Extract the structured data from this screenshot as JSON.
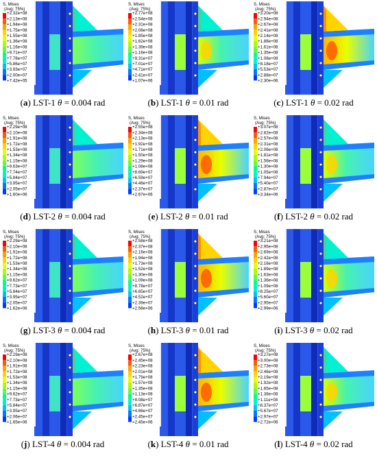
{
  "legend_title_1": "S, Mises",
  "legend_title_2": "(Avg: 75%)",
  "panels": [
    {
      "letter": "a",
      "specimen": "LST-1",
      "theta_symbol": "θ",
      "value": "= 0.004 rad",
      "legend": [
        "+2.32e+08",
        "+2.13e+08",
        "+1.94e+08",
        "+1.75e+08",
        "+1.55e+08",
        "+1.36e+08",
        "+1.16e+08",
        "+9.71e+07",
        "+7.78e+07",
        "+5.86e+07",
        "+3.93e+07",
        "+2.00e+07",
        "+7.42e+05"
      ]
    },
    {
      "letter": "b",
      "specimen": "LST-1",
      "theta_symbol": "θ",
      "value": "= 0.01 rad",
      "legend": [
        "+2.77e+08",
        "+2.54e+08",
        "+2.31e+08",
        "+2.08e+08",
        "+1.85e+08",
        "+1.62e+08",
        "+1.39e+08",
        "+1.16e+08",
        "+9.31e+07",
        "+7.01e+07",
        "+4.71e+07",
        "+2.41e+07",
        "+1.07e+06"
      ]
    },
    {
      "letter": "c",
      "specimen": "LST-1",
      "theta_symbol": "θ",
      "value": "= 0.02 rad",
      "legend": [
        "+3.20e+08",
        "+2.94e+08",
        "+2.67e+08",
        "+2.41e+08",
        "+2.14e+08",
        "+1.88e+08",
        "+1.61e+08",
        "+1.35e+08",
        "+1.08e+08",
        "+8.18e+07",
        "+5.53e+07",
        "+2.88e+07",
        "+2.30e+06"
      ]
    },
    {
      "letter": "d",
      "specimen": "LST-2",
      "theta_symbol": "θ",
      "value": "= 0.004 rad",
      "legend": [
        "+2.29e+08",
        "+2.10e+08",
        "+1.91e+08",
        "+1.72e+08",
        "+1.53e+08",
        "+1.34e+08",
        "+1.15e+08",
        "+9.63e+07",
        "+7.74e+07",
        "+5.84e+07",
        "+3.95e+07",
        "+2.05e+07",
        "+1.60e+06"
      ]
    },
    {
      "letter": "e",
      "specimen": "LST-2",
      "theta_symbol": "θ",
      "value": "= 0.01 rad",
      "legend": [
        "+2.55e+08",
        "+2.34e+08",
        "+2.13e+08",
        "+1.92e+08",
        "+1.71e+08",
        "+1.50e+08",
        "+1.29e+08",
        "+1.08e+08",
        "+8.69e+07",
        "+6.59e+07",
        "+4.48e+07",
        "+2.37e+07",
        "+2.67e+06"
      ]
    },
    {
      "letter": "f",
      "specimen": "LST-2",
      "theta_symbol": "θ",
      "value": "= 0.02 rad",
      "legend": [
        "+3.07e+08",
        "+2.82e+08",
        "+2.57e+08",
        "+2.31e+08",
        "+2.06e+08",
        "+1.81e+08",
        "+1.56e+08",
        "+1.30e+08",
        "+1.05e+08",
        "+7.94e+07",
        "+5.40e+07",
        "+2.87e+07",
        "+3.34e+06"
      ]
    },
    {
      "letter": "g",
      "specimen": "LST-3",
      "theta_symbol": "θ",
      "value": "= 0.004 rad",
      "legend": [
        "+2.29e+08",
        "+2.10e+08",
        "+1.91e+08",
        "+1.72e+08",
        "+1.53e+08",
        "+1.34e+08",
        "+1.15e+08",
        "+9.62e+07",
        "+7.73e+07",
        "+5.84e+07",
        "+3.95e+07",
        "+2.05e+07",
        "+1.62e+06"
      ]
    },
    {
      "letter": "h",
      "specimen": "LST-3",
      "theta_symbol": "θ",
      "value": "= 0.01 rad",
      "legend": [
        "+2.58e+08",
        "+2.37e+08",
        "+2.16e+08",
        "+1.94e+08",
        "+1.73e+08",
        "+1.52e+08",
        "+1.30e+08",
        "+1.09e+08",
        "+8.78e+07",
        "+6.65e+07",
        "+4.52e+07",
        "+2.39e+07",
        "+2.56e+06"
      ]
    },
    {
      "letter": "i",
      "specimen": "LST-3",
      "theta_symbol": "θ",
      "value": "= 0.02 rad",
      "legend": [
        "+3.21e+08",
        "+2.95e+08",
        "+2.69e+08",
        "+2.42e+08",
        "+2.16e+08",
        "+1.89e+08",
        "+1.63e+08",
        "+1.36e+08",
        "+1.09e+08",
        "+8.25e+07",
        "+5.60e+07",
        "+2.95e+07",
        "+2.99e+06"
      ]
    },
    {
      "letter": "j",
      "specimen": "LST-4",
      "theta_symbol": "θ",
      "value": "= 0.004 rad",
      "legend": [
        "+2.29e+08",
        "+2.10e+08",
        "+1.91e+08",
        "+1.72e+08",
        "+1.53e+08",
        "+1.34e+08",
        "+1.15e+08",
        "+9.62e+07",
        "+7.73e+07",
        "+5.84e+07",
        "+3.95e+07",
        "+2.06e+07",
        "+1.65e+06"
      ]
    },
    {
      "letter": "k",
      "specimen": "LST-4",
      "theta_symbol": "θ",
      "value": "= 0.01 rad",
      "legend": [
        "+2.67e+08",
        "+2.45e+08",
        "+2.23e+08",
        "+2.01e+08",
        "+1.79e+08",
        "+1.57e+08",
        "+1.35e+08",
        "+1.13e+08",
        "+9.08e+07",
        "+6.87e+07",
        "+4.66e+07",
        "+2.45e+07",
        "+2.45e+06"
      ]
    },
    {
      "letter": "l",
      "specimen": "LST-4",
      "theta_symbol": "θ",
      "value": "= 0.02 rad",
      "legend": [
        "+3.27e+08",
        "+3.00e+08",
        "+2.73e+08",
        "+2.46e+08",
        "+2.19e+08",
        "+1.92e+08",
        "+1.65e+08",
        "+1.38e+08",
        "+1.11e+08",
        "+8.37e+07",
        "+5.67e+07",
        "+2.97e+07",
        "+2.72e+06"
      ]
    }
  ],
  "colors": {
    "scale": [
      "#ff0000",
      "#ff5a00",
      "#ffa300",
      "#ffd400",
      "#e6ff00",
      "#a8ff00",
      "#5cff3a",
      "#00ff8a",
      "#00f2d2",
      "#00c0ff",
      "#0078ff",
      "#003bff",
      "#0000ff"
    ],
    "column_steel": "#1a3fd8",
    "background": "#ffffff"
  }
}
